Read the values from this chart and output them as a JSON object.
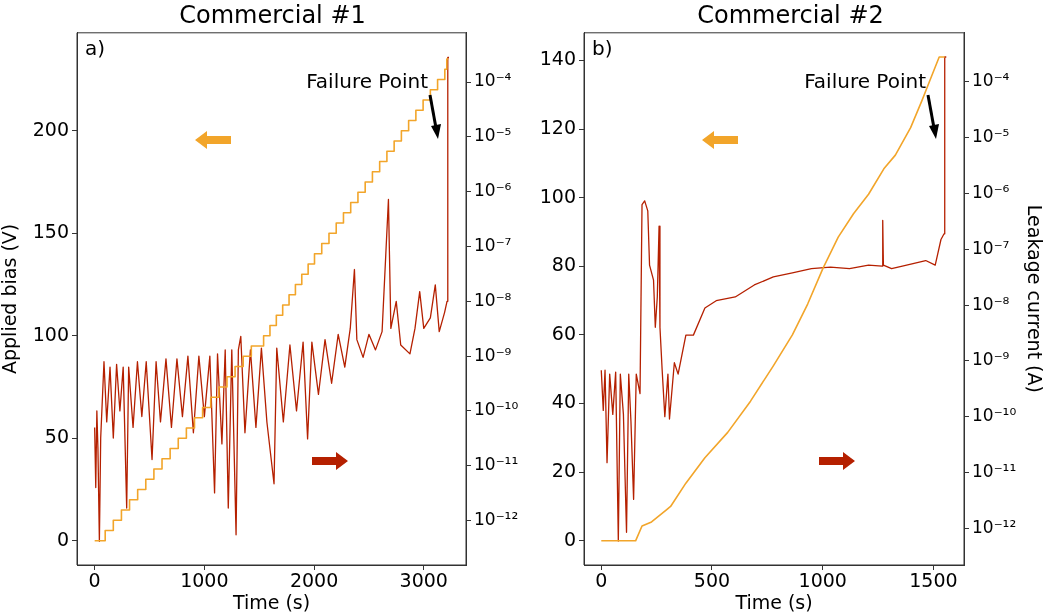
{
  "chart_data": [
    {
      "type": "line",
      "title": "Commercial #1",
      "xlabel": "Time (s)",
      "ylabel": "Applied bias (V)",
      "xlim": [
        -161,
        3385
      ],
      "xticks": [
        0,
        1000,
        2000,
        3000
      ],
      "ylim": [
        -11.8,
        247.8
      ],
      "yticks": [
        0,
        50,
        100,
        150,
        200
      ],
      "y2lim": [
        1.55e-13,
        0.00079
      ],
      "y2ticks": [
        {
          "value": 1e-12,
          "label": "10⁻¹²"
        },
        {
          "value": 1e-11,
          "label": "10⁻¹¹"
        },
        {
          "value": 1e-10,
          "label": "10⁻¹⁰"
        },
        {
          "value": 1e-09,
          "label": "10⁻⁹"
        },
        {
          "value": 1e-08,
          "label": "10⁻⁸"
        },
        {
          "value": 1e-07,
          "label": "10⁻⁷"
        },
        {
          "value": 1e-06,
          "label": "10⁻⁶"
        },
        {
          "value": 1e-05,
          "label": "10⁻⁵"
        },
        {
          "value": 0.0001,
          "label": "10⁻⁴"
        }
      ],
      "log": "y2",
      "grid": false,
      "annotations": [
        "a)",
        "Failure Point"
      ],
      "series": [
        {
          "type": "step",
          "color": "#f2a52a",
          "x": [
            0,
            96,
            170,
            244,
            318,
            392,
            466,
            540,
            614,
            688,
            762,
            836,
            910,
            984,
            1058,
            1132,
            1206,
            1280,
            1354,
            1428,
            1540,
            1598,
            1656,
            1714,
            1772,
            1830,
            1888,
            1946,
            2004,
            2070,
            2136,
            2202,
            2268,
            2334,
            2400,
            2466,
            2532,
            2598,
            2664,
            2730,
            2796,
            2862,
            2928,
            2994,
            3060,
            3126,
            3192,
            3210,
            3224
          ],
          "values": [
            0,
            5,
            10,
            15,
            20,
            25,
            30,
            35,
            40,
            45,
            50,
            55,
            60,
            65,
            70,
            75,
            80,
            85,
            90,
            95,
            100,
            105,
            110,
            115,
            120,
            125,
            130,
            135,
            140,
            145,
            150,
            155,
            160,
            165,
            170,
            175,
            180,
            185,
            190,
            195,
            200,
            205,
            210,
            215,
            220,
            225,
            230,
            235,
            235
          ]
        },
        {
          "type": "line",
          "color": "#b52000",
          "axis": "y2",
          "x": [
            0,
            10,
            20,
            30,
            43,
            55,
            85,
            110,
            140,
            170,
            200,
            230,
            260,
            292,
            310,
            350,
            390,
            430,
            470,
            523,
            560,
            600,
            650,
            700,
            750,
            800,
            850,
            900,
            950,
            1000,
            1050,
            1093,
            1120,
            1160,
            1190,
            1218,
            1250,
            1289,
            1310,
            1332,
            1370,
            1420,
            1470,
            1520,
            1570,
            1635,
            1660,
            1720,
            1780,
            1840,
            1900,
            1941,
            1980,
            2040,
            2100,
            2160,
            2220,
            2280,
            2330,
            2368,
            2390,
            2447,
            2500,
            2560,
            2620,
            2678,
            2700,
            2749,
            2790,
            2874,
            2920,
            2963,
            3000,
            3060,
            3105,
            3141,
            3190,
            3212,
            3219,
            3230
          ],
          "values": [
            5e-11,
            4e-12,
            1e-10,
            2e-11,
            4.2e-13,
            3.2e-11,
            7.9e-10,
            6.3e-11,
            6.3e-10,
            3.2e-11,
            7.1e-10,
            1e-10,
            6.3e-10,
            1.7e-12,
            6.3e-10,
            5e-11,
            7.9e-10,
            7.9e-11,
            7.9e-10,
            1.3e-11,
            7.9e-10,
            6.3e-11,
            8.9e-10,
            5e-11,
            8.9e-10,
            7.9e-11,
            1e-09,
            4e-11,
            1e-09,
            7.9e-11,
            1e-09,
            3.2e-12,
            1.1e-09,
            2.5e-11,
            1.3e-09,
            1.7e-12,
            1.3e-09,
            5.5e-13,
            1.3e-09,
            2.3e-09,
            4e-11,
            1.3e-09,
            5e-11,
            1.4e-09,
            6.3e-11,
            4.7e-12,
            1.4e-09,
            6.3e-11,
            1.6e-09,
            1e-10,
            1.8e-09,
            3.1e-11,
            1.8e-09,
            2e-10,
            2e-09,
            3.2e-10,
            2.5e-09,
            6.3e-10,
            3.2e-09,
            3.8e-08,
            2e-09,
            9.5e-10,
            2.5e-09,
            1.3e-09,
            2.8e-09,
            7.2e-07,
            3.2e-09,
            1e-08,
            1.6e-09,
            1.1e-09,
            3.2e-09,
            1.5e-08,
            3.2e-09,
            5e-09,
            2e-08,
            2.8e-09,
            6.3e-09,
            1e-08,
            0.00028,
            0.00028
          ]
        }
      ]
    },
    {
      "type": "line",
      "title": "Commercial #2",
      "xlabel": "Time (s)",
      "y2label": "Leakage current (A)",
      "xlim": [
        -78,
        1638
      ],
      "xticks": [
        0,
        500,
        1000,
        1500
      ],
      "ylim": [
        -7.05,
        148.05
      ],
      "yticks": [
        0,
        20,
        40,
        60,
        80,
        100,
        120,
        140
      ],
      "y2lim": [
        2.2e-13,
        0.00076
      ],
      "y2ticks": [
        {
          "value": 1e-12,
          "label": "10⁻¹²"
        },
        {
          "value": 1e-11,
          "label": "10⁻¹¹"
        },
        {
          "value": 1e-10,
          "label": "10⁻¹⁰"
        },
        {
          "value": 1e-09,
          "label": "10⁻⁹"
        },
        {
          "value": 1e-08,
          "label": "10⁻⁸"
        },
        {
          "value": 1e-07,
          "label": "10⁻⁷"
        },
        {
          "value": 1e-06,
          "label": "10⁻⁶"
        },
        {
          "value": 1e-05,
          "label": "10⁻⁵"
        },
        {
          "value": 0.0001,
          "label": "10⁻⁴"
        }
      ],
      "log": "y2",
      "grid": false,
      "annotations": [
        "b)",
        "Failure Point"
      ],
      "series": [
        {
          "type": "line",
          "color": "#f2a52a",
          "x": [
            0,
            155,
            184,
            227,
            313,
            382,
            468,
            571,
            674,
            777,
            863,
            932,
            1001,
            1070,
            1139,
            1207,
            1276,
            1328,
            1397,
            1448,
            1483,
            1526,
            1551
          ],
          "values": [
            0,
            0,
            4.3,
            5.5,
            10,
            16.8,
            24.2,
            31.6,
            40.7,
            51,
            60,
            69,
            79.4,
            88.5,
            95.3,
            101,
            108.4,
            112.4,
            120.4,
            128.3,
            134,
            141,
            141
          ]
        },
        {
          "type": "line",
          "color": "#b52000",
          "axis": "y2",
          "x": [
            0,
            9,
            17,
            26,
            38,
            52,
            65,
            77,
            86,
            100,
            114,
            124,
            134,
            146,
            158,
            175,
            184,
            196,
            210,
            218,
            236,
            244,
            253,
            261,
            265,
            275,
            287,
            301,
            308,
            330,
            347,
            382,
            416,
            468,
            519,
            605,
            691,
            777,
            863,
            949,
            1035,
            1121,
            1207,
            1268,
            1271,
            1274,
            1311,
            1379,
            1465,
            1508,
            1534,
            1548,
            1551,
            1558
          ],
          "values": [
            6.8e-10,
            1.3e-10,
            6.8e-10,
            1.5e-11,
            5.8e-10,
            1.1e-10,
            6.3e-10,
            5.9e-13,
            5.8e-10,
            1.1e-10,
            8.5e-13,
            5.8e-10,
            8.3e-11,
            3.3e-12,
            5.8e-10,
            2.6e-10,
            6.3e-07,
            7.4e-07,
            4.9e-07,
            5.2e-08,
            2.8e-08,
            4e-09,
            1.4e-08,
            2.6e-07,
            4e-09,
            6.8e-10,
            1e-10,
            5.8e-10,
            9.1e-11,
            9.3e-10,
            5.8e-10,
            2.9e-09,
            2.9e-09,
            8.9e-09,
            1.2e-08,
            1.4e-08,
            2.3e-08,
            3.2e-08,
            3.8e-08,
            4.5e-08,
            4.8e-08,
            4.5e-08,
            5.2e-08,
            5e-08,
            3.3e-07,
            5.2e-08,
            4.5e-08,
            5.2e-08,
            6.3e-08,
            5.2e-08,
            1.5e-07,
            1.9e-07,
            0.00028,
            0.00028
          ]
        }
      ]
    }
  ]
}
